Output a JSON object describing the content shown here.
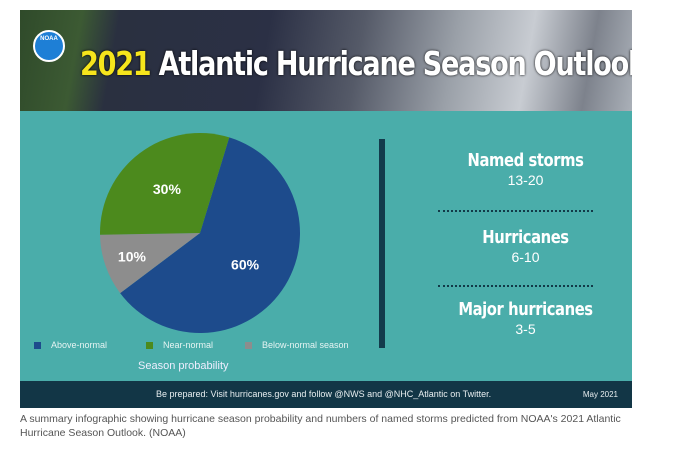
{
  "title_year": "2021",
  "title_rest": "Atlantic Hurricane Season Outlook",
  "logo_text": "NOAA",
  "chart_data": {
    "type": "pie",
    "title": "Season probability",
    "categories": [
      "Above-normal",
      "Near-normal",
      "Below-normal season"
    ],
    "values": [
      60,
      30,
      10
    ],
    "labels": [
      "60%",
      "30%",
      "10%"
    ],
    "colors": [
      "#1d4b8c",
      "#4c8a1d",
      "#8d8d8d"
    ],
    "legend": "bottom"
  },
  "stats": [
    {
      "label": "Named storms",
      "value": "13-20"
    },
    {
      "label": "Hurricanes",
      "value": "6-10"
    },
    {
      "label": "Major hurricanes",
      "value": "3-5"
    }
  ],
  "footer": {
    "message": "Be prepared: Visit hurricanes.gov and follow @NWS and @NHC_Atlantic on Twitter.",
    "date": "May 2021"
  },
  "caption": "A summary infographic showing hurricane season probability and numbers of named storms predicted from NOAA's 2021 Atlantic Hurricane Season Outlook. (NOAA)"
}
